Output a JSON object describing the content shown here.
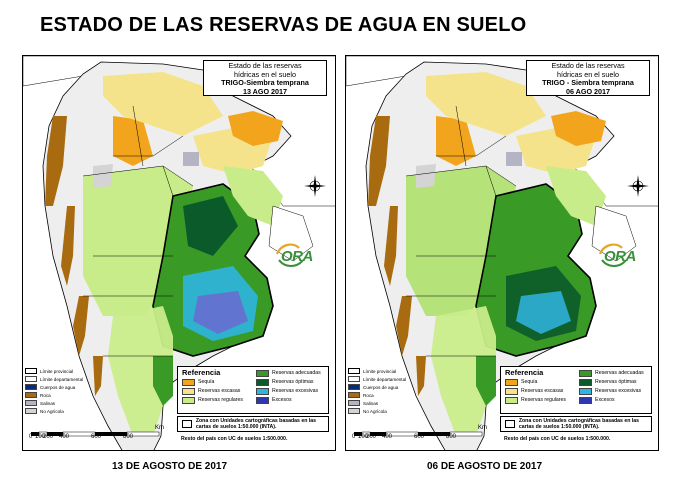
{
  "title": "ESTADO DE LAS RESERVAS DE AGUA EN SUELO",
  "colors": {
    "sequia": "#f2a51c",
    "reservas_escasas": "#f4e38a",
    "reservas_regulares": "#c9ec8a",
    "reservas_adecuadas": "#3a9a26",
    "reservas_optimas": "#0b5a2a",
    "reservas_excesivas": "#2fb5e0",
    "excesos": "#2f36b0",
    "roca": "#a86b10",
    "salinas": "#b4b4c4",
    "no_agricola": "#d4d4d4",
    "cuerpos_de_agua": "#0a2a7a"
  },
  "panels": [
    {
      "info": {
        "line1": "Estado de las reservas",
        "line2": "hídricas en el suelo",
        "line3": "TRIGO-Siembra temprana",
        "line4": "13 AGO 2017"
      },
      "caption": "13 DE AGOSTO DE 2017"
    },
    {
      "info": {
        "line1": "Estado de las reservas",
        "line2": "hídricas en el suelo",
        "line3": "TRIGO - Siembra temprana",
        "line4": "06 AGO 2017"
      },
      "caption": "06 DE AGOSTO DE 2017"
    }
  ],
  "legend": {
    "heading": "Referencia",
    "sequia": "Sequía",
    "reservas_escasas": "Reservas escasas",
    "reservas_regulares": "Reservas regulares",
    "reservas_adecuadas": "Reservas adecuadas",
    "reservas_optimas": "Reservas óptimas",
    "reservas_excesivas": "Reservas excesivas",
    "excesos": "Excesos"
  },
  "key": {
    "limite_provincial": "Límite provincial",
    "limite_departamental": "Límite departamental",
    "cuerpos_de_agua": "Cuerpos de agua",
    "roca": "Roca",
    "salinas": "Salinas",
    "no_agricola": "No Agrícola"
  },
  "zone_text": "Zona con Unidades cartográficas basadas en las cartas de suelos 1:50.000 (INTA).",
  "resto_text": "Resto del país con UC de suelos 1:500.000.",
  "scale": {
    "unit": "Km",
    "ticks": [
      "0",
      "100",
      "200",
      "400",
      "600",
      "800"
    ]
  },
  "logo": "ORA"
}
